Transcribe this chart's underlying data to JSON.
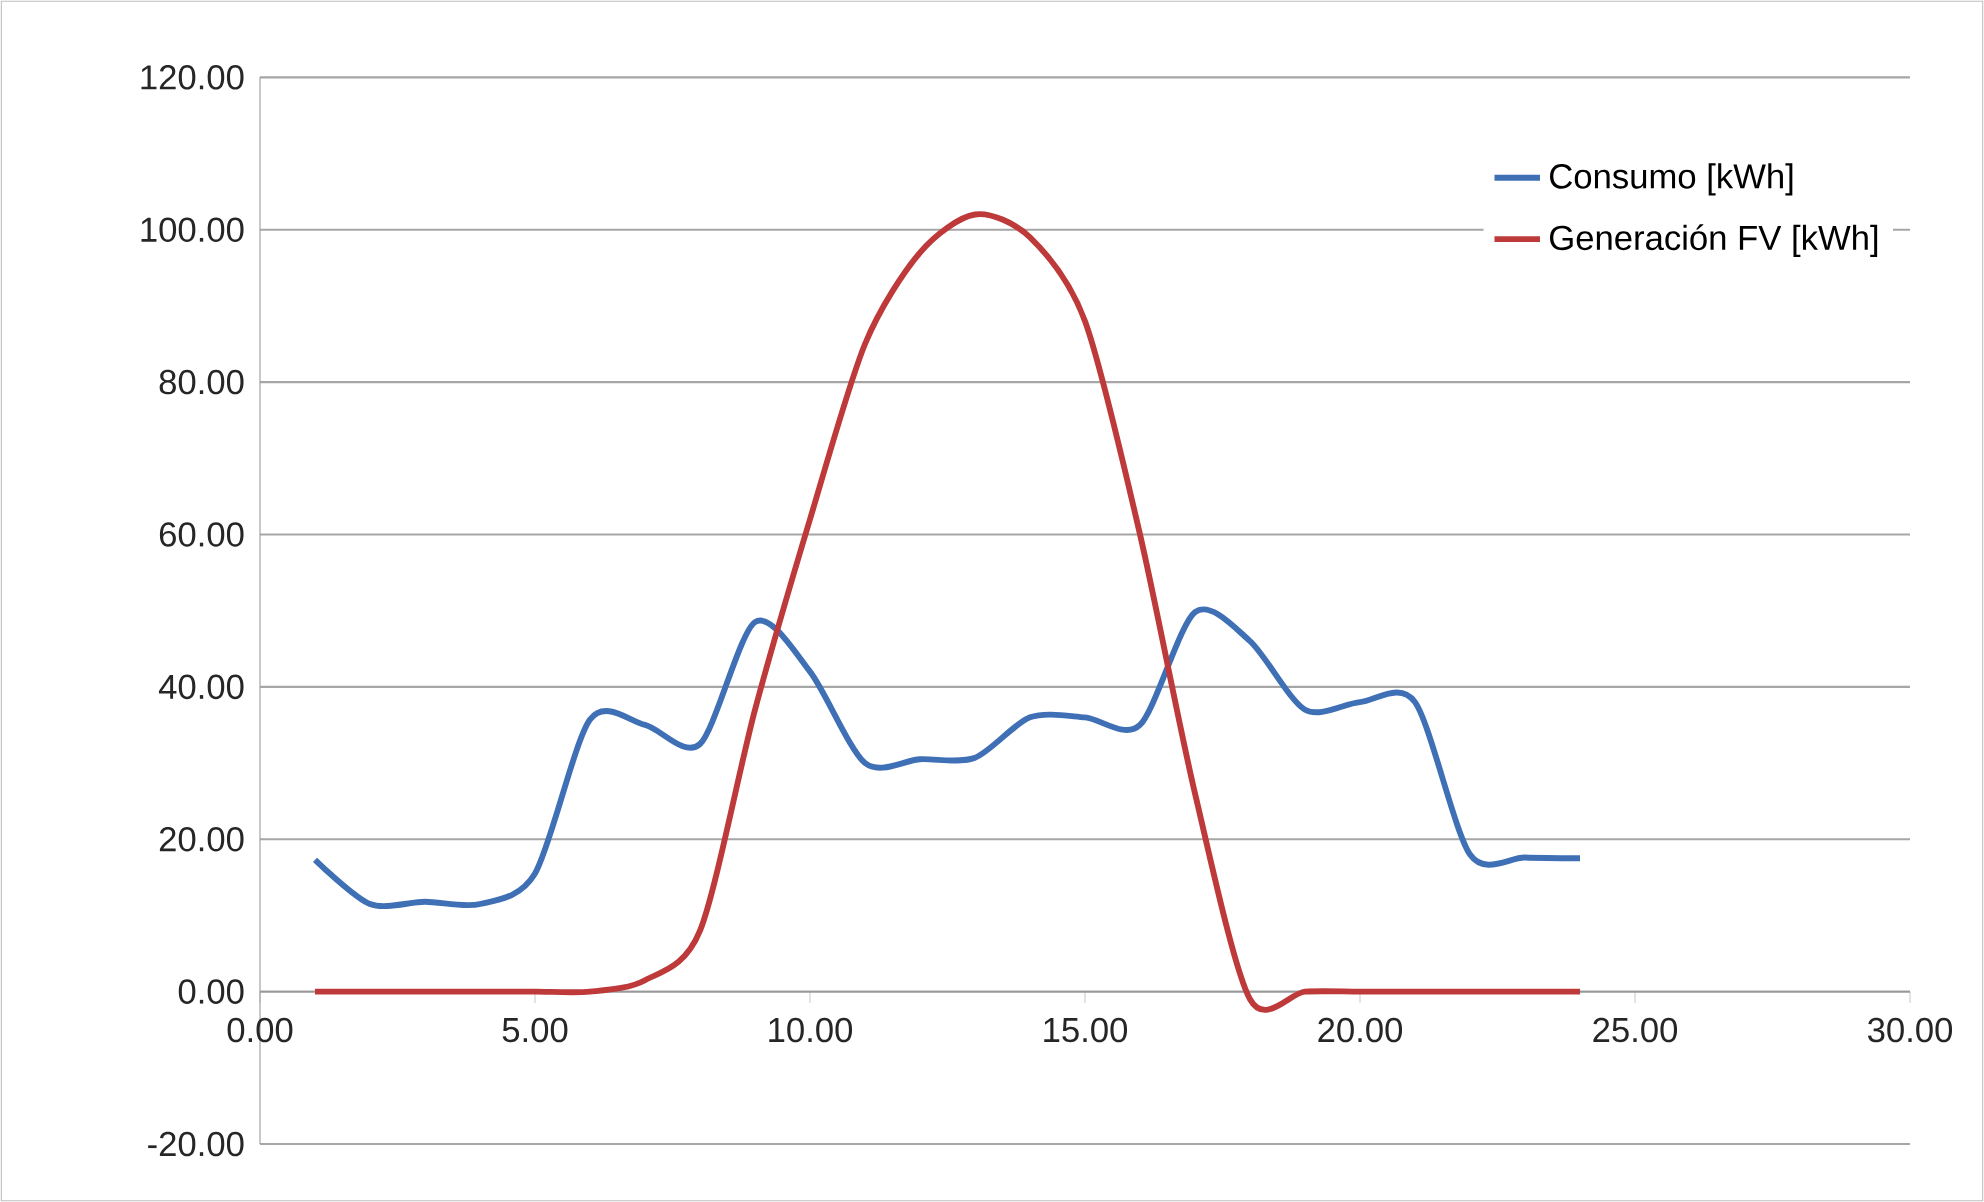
{
  "chart_data": {
    "type": "line",
    "x": [
      1,
      2,
      3,
      4,
      5,
      6,
      7,
      8,
      9,
      10,
      11,
      12,
      13,
      14,
      15,
      16,
      17,
      18,
      19,
      20,
      21,
      22,
      23,
      24
    ],
    "series": [
      {
        "name": "Consumo [kWh]",
        "color": "#3f70b5",
        "values": [
          17.3,
          11.5,
          11.8,
          11.5,
          15.5,
          35.7,
          35,
          32.5,
          48.5,
          42,
          30,
          30.5,
          30.7,
          36,
          36,
          35,
          49.8,
          46,
          37,
          38,
          38,
          18,
          17.6,
          17.5
        ]
      },
      {
        "name": "Generación FV [kWh]",
        "color": "#be3a3a",
        "values": [
          0,
          0,
          0,
          0,
          0,
          0,
          1.5,
          8,
          37,
          62,
          85,
          97,
          102,
          99,
          88,
          60,
          26,
          -1,
          0,
          0,
          0,
          0,
          0,
          0
        ]
      }
    ],
    "xlim": [
      0,
      30
    ],
    "ylim": [
      -20,
      120
    ],
    "xticks": [
      {
        "value": 0,
        "label": "0.00"
      },
      {
        "value": 5,
        "label": "5.00"
      },
      {
        "value": 10,
        "label": "10.00"
      },
      {
        "value": 15,
        "label": "15.00"
      },
      {
        "value": 20,
        "label": "20.00"
      },
      {
        "value": 25,
        "label": "25.00"
      },
      {
        "value": 30,
        "label": "30.00"
      }
    ],
    "yticks": [
      {
        "value": -20,
        "label": "-20.00"
      },
      {
        "value": 0,
        "label": "0.00"
      },
      {
        "value": 20,
        "label": "20.00"
      },
      {
        "value": 40,
        "label": "40.00"
      },
      {
        "value": 60,
        "label": "60.00"
      },
      {
        "value": 80,
        "label": "80.00"
      },
      {
        "value": 100,
        "label": "100.00"
      },
      {
        "value": 120,
        "label": "120.00"
      }
    ],
    "grid": "y",
    "legend": "top right",
    "marker": "none",
    "line_style": "solid"
  }
}
